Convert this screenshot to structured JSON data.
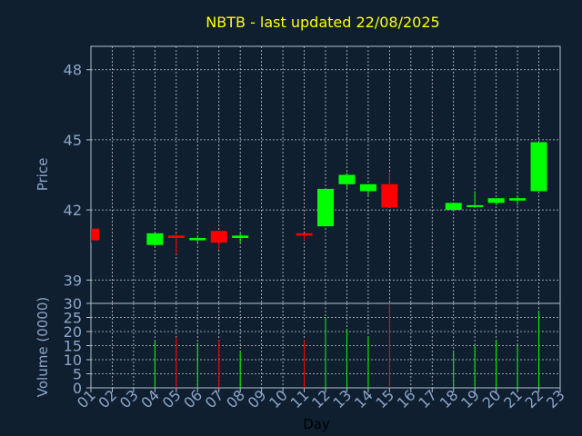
{
  "chart_data": {
    "type": "candlestick",
    "title": "NBTB - last updated 22/08/2025",
    "xlabel": "Day",
    "ylabel": "Price",
    "volume_label": "Volume (0000)",
    "x_ticks": [
      "01",
      "02",
      "03",
      "04",
      "05",
      "06",
      "07",
      "08",
      "09",
      "10",
      "11",
      "12",
      "13",
      "14",
      "15",
      "16",
      "17",
      "18",
      "19",
      "20",
      "21",
      "22",
      "23"
    ],
    "price_ticks": [
      39,
      42,
      45,
      48
    ],
    "price_ylim": [
      38.0,
      49.0
    ],
    "volume_ticks": [
      0,
      5,
      10,
      15,
      20,
      25,
      30
    ],
    "volume_ylim": [
      0,
      30
    ],
    "grid": true,
    "colors": {
      "up": "#00ff00",
      "down": "#ff0000",
      "background": "#0f1f30",
      "title": "#ffff00",
      "axis_text": "#8aa6c8"
    },
    "candles": [
      {
        "day": 1,
        "open": 41.2,
        "high": 41.2,
        "low": 40.6,
        "close": 40.7,
        "volume": 0
      },
      {
        "day": 4,
        "open": 40.5,
        "high": 41.0,
        "low": 40.4,
        "close": 41.0,
        "volume": 17
      },
      {
        "day": 5,
        "open": 40.9,
        "high": 41.0,
        "low": 40.1,
        "close": 40.8,
        "volume": 18
      },
      {
        "day": 6,
        "open": 40.7,
        "high": 40.9,
        "low": 40.6,
        "close": 40.8,
        "volume": 16
      },
      {
        "day": 7,
        "open": 41.1,
        "high": 41.1,
        "low": 40.3,
        "close": 40.6,
        "volume": 17
      },
      {
        "day": 8,
        "open": 40.8,
        "high": 41.0,
        "low": 40.6,
        "close": 40.9,
        "volume": 13
      },
      {
        "day": 11,
        "open": 41.0,
        "high": 41.0,
        "low": 40.7,
        "close": 40.9,
        "volume": 17
      },
      {
        "day": 12,
        "open": 41.3,
        "high": 42.9,
        "low": 41.3,
        "close": 42.9,
        "volume": 25
      },
      {
        "day": 13,
        "open": 43.1,
        "high": 43.6,
        "low": 42.9,
        "close": 43.5,
        "volume": 21
      },
      {
        "day": 14,
        "open": 42.8,
        "high": 43.1,
        "low": 42.6,
        "close": 43.1,
        "volume": 18
      },
      {
        "day": 15,
        "open": 43.1,
        "high": 43.6,
        "low": 42.1,
        "close": 42.1,
        "volume": 30
      },
      {
        "day": 18,
        "open": 42.0,
        "high": 42.3,
        "low": 42.0,
        "close": 42.3,
        "volume": 13
      },
      {
        "day": 19,
        "open": 42.2,
        "high": 42.8,
        "low": 42.1,
        "close": 42.2,
        "volume": 15
      },
      {
        "day": 20,
        "open": 42.3,
        "high": 42.5,
        "low": 42.2,
        "close": 42.5,
        "volume": 17
      },
      {
        "day": 21,
        "open": 42.4,
        "high": 42.6,
        "low": 42.2,
        "close": 42.5,
        "volume": 15
      },
      {
        "day": 22,
        "open": 42.8,
        "high": 44.9,
        "low": 42.8,
        "close": 44.9,
        "volume": 27
      }
    ]
  }
}
